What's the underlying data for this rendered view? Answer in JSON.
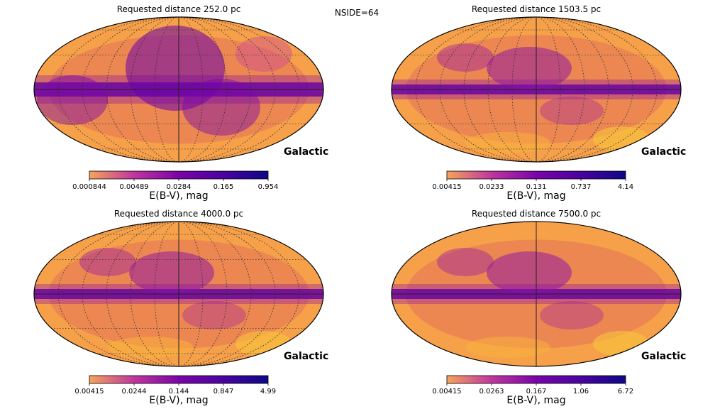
{
  "suptitle": "NSIDE=64",
  "colormap": [
    "#f0f921",
    "#fca636",
    "#e16462",
    "#b12a90",
    "#6a00a8",
    "#0d0887"
  ],
  "chart_data": [
    {
      "type": "heatmap",
      "projection": "mollweide",
      "title": "Requested distance 252.0 pc",
      "coord_label": "Galactic",
      "colorbar": {
        "label": "E(B-V), mag",
        "scale": "log",
        "ticks": [
          "0.000844",
          "0.00489",
          "0.0284",
          "0.165",
          "0.954"
        ]
      },
      "graticule": true
    },
    {
      "type": "heatmap",
      "projection": "mollweide",
      "title": "Requested distance 1503.5 pc",
      "coord_label": "Galactic",
      "colorbar": {
        "label": "E(B-V), mag",
        "scale": "log",
        "ticks": [
          "0.00415",
          "0.0233",
          "0.131",
          "0.737",
          "4.14"
        ]
      },
      "graticule": true
    },
    {
      "type": "heatmap",
      "projection": "mollweide",
      "title": "Requested distance 4000.0 pc",
      "coord_label": "Galactic",
      "colorbar": {
        "label": "E(B-V), mag",
        "scale": "log",
        "ticks": [
          "0.00415",
          "0.0244",
          "0.144",
          "0.847",
          "4.99"
        ]
      },
      "graticule": true
    },
    {
      "type": "heatmap",
      "projection": "mollweide",
      "title": "Requested distance 7500.0 pc",
      "coord_label": "Galactic",
      "colorbar": {
        "label": "E(B-V), mag",
        "scale": "log",
        "ticks": [
          "0.00415",
          "0.0263",
          "0.167",
          "1.06",
          "6.72"
        ]
      },
      "graticule": false
    }
  ]
}
